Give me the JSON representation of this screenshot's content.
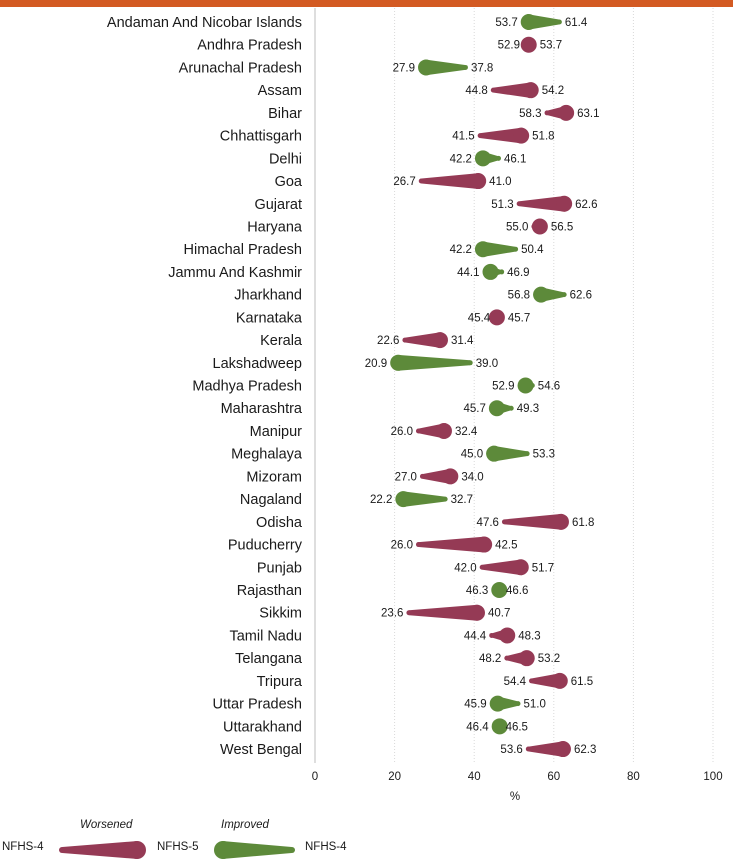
{
  "colors": {
    "worsened": "#953a55",
    "improved": "#5d8a3a",
    "header": "#d35a22",
    "grid": "#d9d9d9"
  },
  "chart_data": {
    "type": "dumbbell",
    "xlabel": "%",
    "xlim": [
      0,
      100
    ],
    "xticks": [
      "0",
      "20",
      "40",
      "60",
      "80",
      "100"
    ],
    "series_names": {
      "from": "NFHS-4",
      "to": "NFHS-5"
    },
    "rows": [
      {
        "state": "Andaman And Nicobar Islands",
        "nfhs4": 61.4,
        "nfhs5": 53.7,
        "nfhs4_label": "61.4",
        "nfhs5_label": "53.7",
        "status": "improved"
      },
      {
        "state": "Andhra Pradesh",
        "nfhs4": 52.9,
        "nfhs5": 53.7,
        "nfhs4_label": "52.9",
        "nfhs5_label": "53.7",
        "status": "worsened"
      },
      {
        "state": "Arunachal Pradesh",
        "nfhs4": 37.8,
        "nfhs5": 27.9,
        "nfhs4_label": "37.8",
        "nfhs5_label": "27.9",
        "status": "improved"
      },
      {
        "state": "Assam",
        "nfhs4": 44.8,
        "nfhs5": 54.2,
        "nfhs4_label": "44.8",
        "nfhs5_label": "54.2",
        "status": "worsened"
      },
      {
        "state": "Bihar",
        "nfhs4": 58.3,
        "nfhs5": 63.1,
        "nfhs4_label": "58.3",
        "nfhs5_label": "63.1",
        "status": "worsened"
      },
      {
        "state": "Chhattisgarh",
        "nfhs4": 41.5,
        "nfhs5": 51.8,
        "nfhs4_label": "41.5",
        "nfhs5_label": "51.8",
        "status": "worsened"
      },
      {
        "state": "Delhi",
        "nfhs4": 46.1,
        "nfhs5": 42.2,
        "nfhs4_label": "46.1",
        "nfhs5_label": "42.2",
        "status": "improved"
      },
      {
        "state": "Goa",
        "nfhs4": 26.7,
        "nfhs5": 41.0,
        "nfhs4_label": "26.7",
        "nfhs5_label": "41.0",
        "status": "worsened"
      },
      {
        "state": "Gujarat",
        "nfhs4": 51.3,
        "nfhs5": 62.6,
        "nfhs4_label": "51.3",
        "nfhs5_label": "62.6",
        "status": "worsened"
      },
      {
        "state": "Haryana",
        "nfhs4": 55.0,
        "nfhs5": 56.5,
        "nfhs4_label": "55.0",
        "nfhs5_label": "56.5",
        "status": "worsened"
      },
      {
        "state": "Himachal Pradesh",
        "nfhs4": 50.4,
        "nfhs5": 42.2,
        "nfhs4_label": "50.4",
        "nfhs5_label": "42.2",
        "status": "improved"
      },
      {
        "state": "Jammu And Kashmir",
        "nfhs4": 46.9,
        "nfhs5": 44.1,
        "nfhs4_label": "46.9",
        "nfhs5_label": "44.1",
        "status": "improved"
      },
      {
        "state": "Jharkhand",
        "nfhs4": 62.6,
        "nfhs5": 56.8,
        "nfhs4_label": "62.6",
        "nfhs5_label": "56.8",
        "status": "improved"
      },
      {
        "state": "Karnataka",
        "nfhs4": 45.4,
        "nfhs5": 45.7,
        "nfhs4_label": "45.4",
        "nfhs5_label": "45.7",
        "status": "worsened"
      },
      {
        "state": "Kerala",
        "nfhs4": 22.6,
        "nfhs5": 31.4,
        "nfhs4_label": "22.6",
        "nfhs5_label": "31.4",
        "status": "worsened"
      },
      {
        "state": "Lakshadweep",
        "nfhs4": 39.0,
        "nfhs5": 20.9,
        "nfhs4_label": "39.0",
        "nfhs5_label": "20.9",
        "status": "improved"
      },
      {
        "state": "Madhya Pradesh",
        "nfhs4": 54.6,
        "nfhs5": 52.9,
        "nfhs4_label": "54.6",
        "nfhs5_label": "52.9",
        "status": "improved"
      },
      {
        "state": "Maharashtra",
        "nfhs4": 49.3,
        "nfhs5": 45.7,
        "nfhs4_label": "49.3",
        "nfhs5_label": "45.7",
        "status": "improved"
      },
      {
        "state": "Manipur",
        "nfhs4": 26.0,
        "nfhs5": 32.4,
        "nfhs4_label": "26.0",
        "nfhs5_label": "32.4",
        "status": "worsened"
      },
      {
        "state": "Meghalaya",
        "nfhs4": 53.3,
        "nfhs5": 45.0,
        "nfhs4_label": "53.3",
        "nfhs5_label": "45.0",
        "status": "improved"
      },
      {
        "state": "Mizoram",
        "nfhs4": 27.0,
        "nfhs5": 34.0,
        "nfhs4_label": "27.0",
        "nfhs5_label": "34.0",
        "status": "worsened"
      },
      {
        "state": "Nagaland",
        "nfhs4": 32.7,
        "nfhs5": 22.2,
        "nfhs4_label": "32.7",
        "nfhs5_label": "22.2",
        "status": "improved"
      },
      {
        "state": "Odisha",
        "nfhs4": 47.6,
        "nfhs5": 61.8,
        "nfhs4_label": "47.6",
        "nfhs5_label": "61.8",
        "status": "worsened"
      },
      {
        "state": "Puducherry",
        "nfhs4": 26.0,
        "nfhs5": 42.5,
        "nfhs4_label": "26.0",
        "nfhs5_label": "42.5",
        "status": "worsened"
      },
      {
        "state": "Punjab",
        "nfhs4": 42.0,
        "nfhs5": 51.7,
        "nfhs4_label": "42.0",
        "nfhs5_label": "51.7",
        "status": "worsened"
      },
      {
        "state": "Rajasthan",
        "nfhs4": 46.6,
        "nfhs5": 46.3,
        "nfhs4_label": "46.6",
        "nfhs5_label": "46.3",
        "status": "improved"
      },
      {
        "state": "Sikkim",
        "nfhs4": 23.6,
        "nfhs5": 40.7,
        "nfhs4_label": "23.6",
        "nfhs5_label": "40.7",
        "status": "worsened"
      },
      {
        "state": "Tamil Nadu",
        "nfhs4": 44.4,
        "nfhs5": 48.3,
        "nfhs4_label": "44.4",
        "nfhs5_label": "48.3",
        "status": "worsened"
      },
      {
        "state": "Telangana",
        "nfhs4": 48.2,
        "nfhs5": 53.2,
        "nfhs4_label": "48.2",
        "nfhs5_label": "53.2",
        "status": "worsened"
      },
      {
        "state": "Tripura",
        "nfhs4": 54.4,
        "nfhs5": 61.5,
        "nfhs4_label": "54.4",
        "nfhs5_label": "61.5",
        "status": "worsened"
      },
      {
        "state": "Uttar Pradesh",
        "nfhs4": 51.0,
        "nfhs5": 45.9,
        "nfhs4_label": "51.0",
        "nfhs5_label": "45.9",
        "status": "improved"
      },
      {
        "state": "Uttarakhand",
        "nfhs4": 46.5,
        "nfhs5": 46.4,
        "nfhs4_label": "46.5",
        "nfhs5_label": "46.4",
        "status": "improved"
      },
      {
        "state": "West Bengal",
        "nfhs4": 53.6,
        "nfhs5": 62.3,
        "nfhs4_label": "53.6",
        "nfhs5_label": "62.3",
        "status": "worsened"
      }
    ],
    "grid": true
  },
  "legend": {
    "worsened_title": "Worsened",
    "improved_title": "Improved",
    "left_label": "NFHS-4",
    "middle_label": "NFHS-5",
    "right_label": "NFHS-4"
  }
}
